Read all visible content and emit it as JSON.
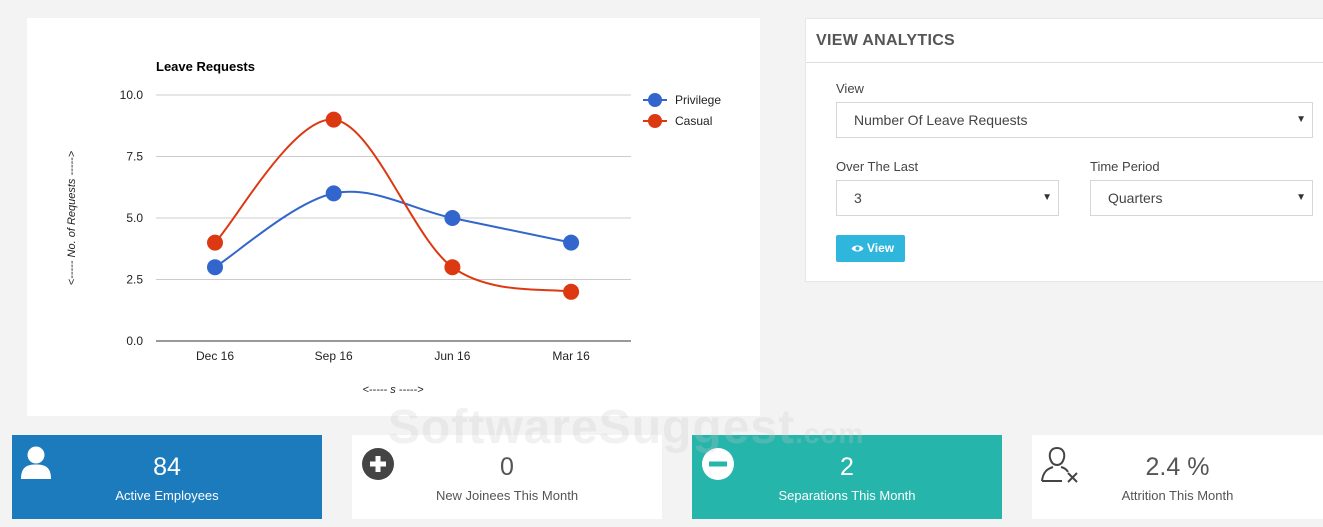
{
  "colors": {
    "privilege": "#3366cc",
    "casual": "#dc3912",
    "blue_card": "#1c7bbd",
    "teal_card": "#26b5ab",
    "view_button": "#2eb6dc"
  },
  "chart_data": {
    "type": "line",
    "title": "Leave Requests",
    "xlabel": "<----- s ----->",
    "ylabel": "<----- No. of Requests ----->",
    "categories": [
      "Dec 16",
      "Sep 16",
      "Jun 16",
      "Mar 16"
    ],
    "yticks": [
      "10.0",
      "7.5",
      "5.0",
      "2.5",
      "0.0"
    ],
    "ylim": [
      0,
      10
    ],
    "grid": true,
    "legend_position": "right",
    "smooth": true,
    "series": [
      {
        "name": "Privilege",
        "color": "#3366cc",
        "values": [
          3,
          6,
          5,
          4
        ]
      },
      {
        "name": "Casual",
        "color": "#dc3912",
        "values": [
          4,
          9,
          3,
          2
        ]
      }
    ]
  },
  "analytics": {
    "header": "VIEW ANALYTICS",
    "view_label": "View",
    "view_value": "Number Of Leave Requests",
    "over_label": "Over The Last",
    "over_value": "3",
    "period_label": "Time Period",
    "period_value": "Quarters",
    "button_label": "View",
    "caret": "▼"
  },
  "stats": [
    {
      "value": "84",
      "label": "Active Employees",
      "icon": "user-icon"
    },
    {
      "value": "0",
      "label": "New Joinees This Month",
      "icon": "plus-circle-icon"
    },
    {
      "value": "2",
      "label": "Separations This Month",
      "icon": "minus-circle-icon"
    },
    {
      "value": "2.4 %",
      "label": "Attrition This Month",
      "icon": "user-remove-icon"
    }
  ],
  "watermark": {
    "main": "SoftwareSuggest",
    "suffix": ".com"
  }
}
